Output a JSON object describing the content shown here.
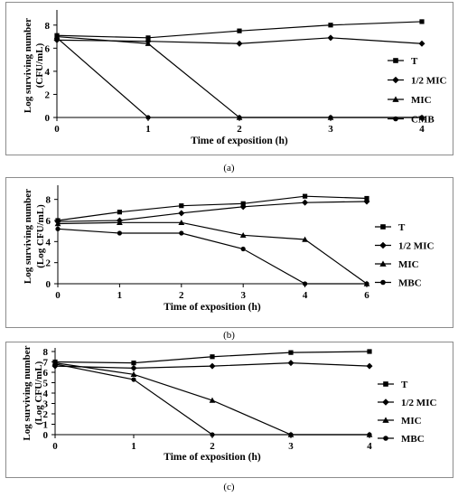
{
  "chart_data": [
    {
      "type": "line",
      "panel_caption": "(a)",
      "x": [
        0,
        1,
        2,
        3,
        4
      ],
      "xlabel": "Time of exposition (h)",
      "ylabel": [
        "Log surviving number",
        "(CFU/mL)"
      ],
      "ylim": [
        0,
        9
      ],
      "yticks": [
        0,
        2,
        4,
        6,
        8
      ],
      "grid": false,
      "legend_position": "right",
      "series": [
        {
          "name": "T",
          "marker": "square",
          "values": [
            7.1,
            6.9,
            7.5,
            8.0,
            8.3
          ]
        },
        {
          "name": "1/2 MIC",
          "marker": "diamond",
          "values": [
            6.7,
            6.6,
            6.4,
            6.9,
            6.4
          ]
        },
        {
          "name": "MIC",
          "marker": "triangle",
          "values": [
            7.0,
            6.4,
            0,
            0,
            0
          ]
        },
        {
          "name": "CMB",
          "marker": "circle",
          "values": [
            6.9,
            0,
            0,
            0,
            0
          ]
        }
      ]
    },
    {
      "type": "line",
      "panel_caption": "(b)",
      "x": [
        0,
        1,
        2,
        3,
        4,
        6
      ],
      "xlabel": "Time of exposition (h)",
      "ylabel": [
        "Log surviving number",
        "(Log CFU/mL)"
      ],
      "ylim": [
        0,
        9
      ],
      "yticks": [
        0,
        2,
        4,
        6,
        8
      ],
      "grid": false,
      "legend_position": "right",
      "series": [
        {
          "name": "T",
          "marker": "square",
          "values": [
            6.0,
            6.8,
            7.4,
            7.6,
            8.3,
            8.1
          ]
        },
        {
          "name": "1/2 MIC",
          "marker": "diamond",
          "values": [
            5.9,
            6.0,
            6.7,
            7.3,
            7.7,
            7.8
          ]
        },
        {
          "name": "MIC",
          "marker": "triangle",
          "values": [
            5.7,
            5.8,
            5.8,
            4.6,
            4.2,
            0
          ]
        },
        {
          "name": "MBC",
          "marker": "circle",
          "values": [
            5.2,
            4.8,
            4.8,
            3.3,
            0,
            0
          ]
        }
      ]
    },
    {
      "type": "line",
      "panel_caption": "(c)",
      "x": [
        0,
        1,
        2,
        3,
        4
      ],
      "xlabel": "Time of exposition (h)",
      "ylabel": [
        "Log surviving number",
        "(Log CFU/mL)"
      ],
      "ylim": [
        0,
        8
      ],
      "yticks": [
        0,
        1,
        2,
        3,
        4,
        5,
        6,
        7,
        8
      ],
      "grid": false,
      "legend_position": "right",
      "series": [
        {
          "name": "T",
          "marker": "square",
          "values": [
            7.0,
            6.9,
            7.5,
            7.9,
            8.0
          ]
        },
        {
          "name": "1/2 MIC",
          "marker": "diamond",
          "values": [
            6.6,
            6.4,
            6.6,
            6.9,
            6.6
          ]
        },
        {
          "name": "MIC",
          "marker": "triangle",
          "values": [
            6.9,
            5.8,
            3.3,
            0,
            0
          ]
        },
        {
          "name": "MBC",
          "marker": "circle",
          "values": [
            6.8,
            5.3,
            0,
            0,
            0
          ]
        }
      ]
    }
  ]
}
